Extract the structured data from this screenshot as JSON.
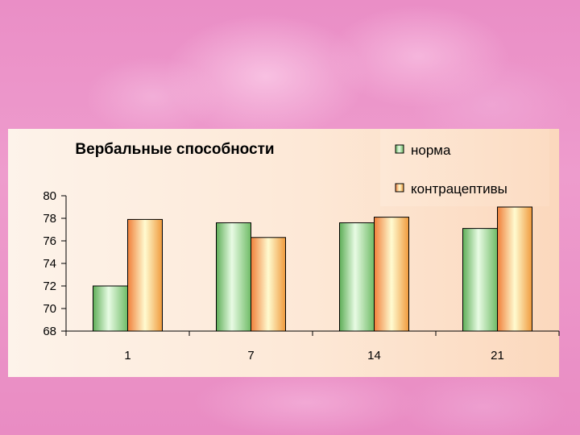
{
  "chart_data": {
    "type": "bar",
    "title": "Вербальные способности",
    "categories": [
      "1",
      "7",
      "14",
      "21"
    ],
    "series": [
      {
        "name": "норма",
        "values": [
          72.0,
          77.6,
          77.6,
          77.1
        ]
      },
      {
        "name": "контрацептивы",
        "values": [
          77.9,
          76.3,
          78.1,
          79.0
        ]
      }
    ],
    "ylim": [
      68,
      80
    ],
    "yticks": [
      68,
      70,
      72,
      74,
      76,
      78,
      80
    ],
    "xlabel": "",
    "ylabel": "",
    "legend_position": "top-right",
    "grid": false
  },
  "colors": {
    "series_0": "#a8e6a1",
    "series_1": "#f7c46a"
  }
}
